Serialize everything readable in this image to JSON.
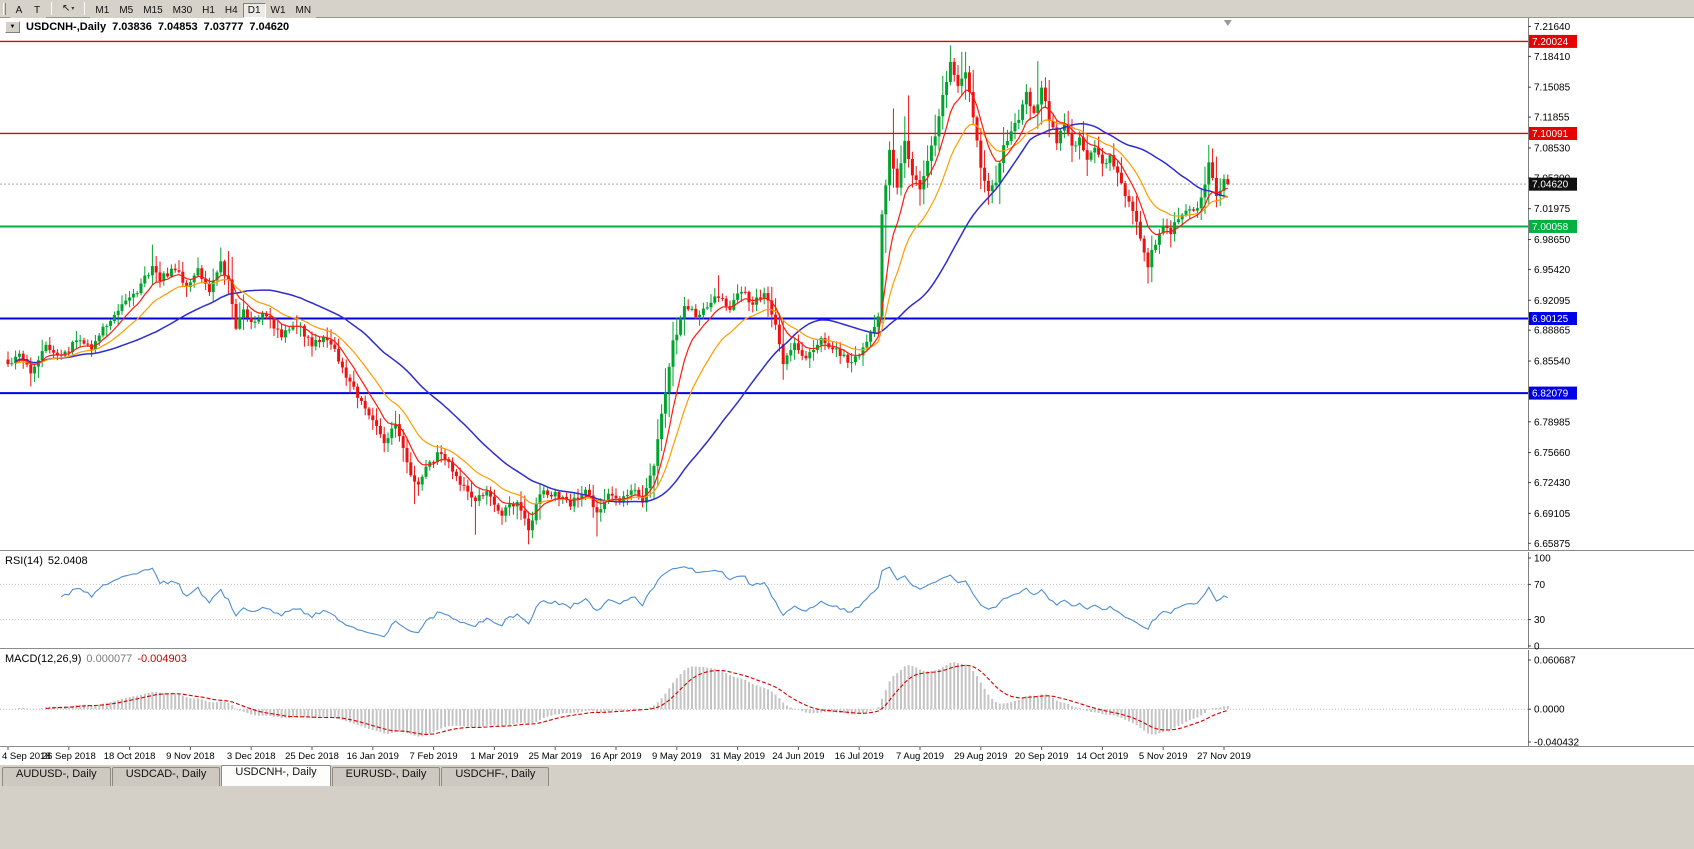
{
  "icons": {
    "dropdown": "▼",
    "cursor": "↖",
    "chevron": "▾"
  },
  "toolbar": {
    "buttons": [
      "A",
      "T"
    ],
    "timeframes": [
      "M1",
      "M5",
      "M15",
      "M30",
      "H1",
      "H4",
      "D1",
      "W1",
      "MN"
    ],
    "active_timeframe": "D1"
  },
  "chart": {
    "title": {
      "symbol": "USDCNH-,Daily",
      "open": "7.03836",
      "high": "7.04853",
      "low": "7.03777",
      "close": "7.04620"
    }
  },
  "chart_data": {
    "type": "candlestick",
    "symbol": "USDCNH-",
    "period": "Daily",
    "bars": 322,
    "candle_up_color": "#00a32e",
    "candle_down_color": "#ef1010",
    "y_axis": {
      "top_price": 7.2255,
      "bottom_price": 6.6515,
      "ticks": [
        "7.21640",
        "7.18410",
        "7.15085",
        "7.11855",
        "7.08530",
        "7.05300",
        "7.01975",
        "6.98650",
        "6.95420",
        "6.92095",
        "6.88865",
        "6.85540",
        "6.82215",
        "6.78985",
        "6.75660",
        "6.72430",
        "6.69105",
        "6.65875"
      ]
    },
    "x_axis": {
      "ticks": [
        {
          "bar": 0,
          "label": "4 Sep 2018"
        },
        {
          "bar": 16,
          "label": "26 Sep 2018"
        },
        {
          "bar": 32,
          "label": "18 Oct 2018"
        },
        {
          "bar": 48,
          "label": "9 Nov 2018"
        },
        {
          "bar": 64,
          "label": "3 Dec 2018"
        },
        {
          "bar": 80,
          "label": "25 Dec 2018"
        },
        {
          "bar": 96,
          "label": "16 Jan 2019"
        },
        {
          "bar": 112,
          "label": "7 Feb 2019"
        },
        {
          "bar": 128,
          "label": "1 Mar 2019"
        },
        {
          "bar": 144,
          "label": "25 Mar 2019"
        },
        {
          "bar": 160,
          "label": "16 Apr 2019"
        },
        {
          "bar": 176,
          "label": "9 May 2019"
        },
        {
          "bar": 192,
          "label": "31 May 2019"
        },
        {
          "bar": 208,
          "label": "24 Jun 2019"
        },
        {
          "bar": 224,
          "label": "16 Jul 2019"
        },
        {
          "bar": 240,
          "label": "7 Aug 2019"
        },
        {
          "bar": 256,
          "label": "29 Aug 2019"
        },
        {
          "bar": 272,
          "label": "20 Sep 2019"
        },
        {
          "bar": 288,
          "label": "14 Oct 2019"
        },
        {
          "bar": 304,
          "label": "5 Nov 2019"
        },
        {
          "bar": 320,
          "label": "27 Nov 2019"
        }
      ]
    },
    "horizontal_lines": [
      {
        "price": 7.20024,
        "label": "7.20024",
        "color": "#e60000",
        "width": 1.4
      },
      {
        "price": 7.10091,
        "label": "7.10091",
        "color": "#e60000",
        "width": 1.4
      },
      {
        "price": 7.00058,
        "label": "7.00058",
        "color": "#00b140",
        "width": 2
      },
      {
        "price": 6.90125,
        "label": "6.90125",
        "color": "#0000e6",
        "width": 2
      },
      {
        "price": 6.82079,
        "label": "6.82079",
        "color": "#0000e6",
        "width": 2
      }
    ],
    "current_price": {
      "price": 7.0462,
      "label": "7.04620",
      "box_color": "#101010",
      "line_color": "#a8a8a8"
    },
    "moving_averages": [
      {
        "kind": "ema",
        "period": 8,
        "color": "#ff1a0e",
        "width": 1.2
      },
      {
        "kind": "ema",
        "period": 18,
        "color": "#ff9c00",
        "width": 1.2
      },
      {
        "kind": "sma",
        "period": 40,
        "color": "#2d2dcc",
        "width": 1.5
      }
    ],
    "close_waypoints": [
      [
        0,
        6.852
      ],
      [
        3,
        6.862
      ],
      [
        6,
        6.843
      ],
      [
        10,
        6.871
      ],
      [
        14,
        6.858
      ],
      [
        18,
        6.878
      ],
      [
        22,
        6.871
      ],
      [
        26,
        6.896
      ],
      [
        30,
        6.916
      ],
      [
        34,
        6.931
      ],
      [
        38,
        6.958
      ],
      [
        40,
        6.944
      ],
      [
        44,
        6.956
      ],
      [
        47,
        6.937
      ],
      [
        50,
        6.954
      ],
      [
        53,
        6.93
      ],
      [
        56,
        6.96
      ],
      [
        58,
        6.941
      ],
      [
        60,
        6.889
      ],
      [
        62,
        6.911
      ],
      [
        64,
        6.895
      ],
      [
        68,
        6.906
      ],
      [
        72,
        6.882
      ],
      [
        76,
        6.896
      ],
      [
        80,
        6.873
      ],
      [
        84,
        6.881
      ],
      [
        88,
        6.849
      ],
      [
        92,
        6.816
      ],
      [
        96,
        6.791
      ],
      [
        99,
        6.766
      ],
      [
        102,
        6.788
      ],
      [
        105,
        6.743
      ],
      [
        108,
        6.721
      ],
      [
        111,
        6.746
      ],
      [
        114,
        6.757
      ],
      [
        118,
        6.731
      ],
      [
        122,
        6.706
      ],
      [
        126,
        6.713
      ],
      [
        130,
        6.691
      ],
      [
        134,
        6.706
      ],
      [
        137,
        6.673
      ],
      [
        140,
        6.713
      ],
      [
        144,
        6.712
      ],
      [
        148,
        6.701
      ],
      [
        152,
        6.718
      ],
      [
        155,
        6.689
      ],
      [
        158,
        6.712
      ],
      [
        161,
        6.703
      ],
      [
        164,
        6.718
      ],
      [
        167,
        6.706
      ],
      [
        170,
        6.742
      ],
      [
        172,
        6.795
      ],
      [
        175,
        6.875
      ],
      [
        178,
        6.912
      ],
      [
        182,
        6.904
      ],
      [
        186,
        6.927
      ],
      [
        190,
        6.914
      ],
      [
        193,
        6.931
      ],
      [
        196,
        6.917
      ],
      [
        199,
        6.929
      ],
      [
        202,
        6.894
      ],
      [
        204,
        6.853
      ],
      [
        207,
        6.871
      ],
      [
        210,
        6.859
      ],
      [
        214,
        6.879
      ],
      [
        218,
        6.867
      ],
      [
        222,
        6.853
      ],
      [
        226,
        6.876
      ],
      [
        229,
        6.901
      ],
      [
        230,
        7.015
      ],
      [
        232,
        7.08
      ],
      [
        234,
        7.046
      ],
      [
        236,
        7.09
      ],
      [
        238,
        7.057
      ],
      [
        240,
        7.043
      ],
      [
        242,
        7.074
      ],
      [
        244,
        7.097
      ],
      [
        246,
        7.14
      ],
      [
        248,
        7.176
      ],
      [
        250,
        7.151
      ],
      [
        252,
        7.17
      ],
      [
        254,
        7.117
      ],
      [
        256,
        7.063
      ],
      [
        258,
        7.036
      ],
      [
        260,
        7.051
      ],
      [
        262,
        7.087
      ],
      [
        264,
        7.104
      ],
      [
        266,
        7.117
      ],
      [
        268,
        7.143
      ],
      [
        270,
        7.121
      ],
      [
        272,
        7.15
      ],
      [
        274,
        7.117
      ],
      [
        276,
        7.094
      ],
      [
        278,
        7.11
      ],
      [
        280,
        7.087
      ],
      [
        282,
        7.094
      ],
      [
        284,
        7.071
      ],
      [
        286,
        7.087
      ],
      [
        288,
        7.067
      ],
      [
        290,
        7.077
      ],
      [
        292,
        7.061
      ],
      [
        294,
        7.037
      ],
      [
        296,
        7.02
      ],
      [
        298,
        6.986
      ],
      [
        300,
        6.96
      ],
      [
        302,
        6.984
      ],
      [
        304,
        7.001
      ],
      [
        306,
        6.991
      ],
      [
        308,
        7.012
      ],
      [
        310,
        7.021
      ],
      [
        312,
        7.014
      ],
      [
        314,
        7.03
      ],
      [
        316,
        7.068
      ],
      [
        317,
        7.052
      ],
      [
        318,
        7.034
      ],
      [
        319,
        7.041
      ],
      [
        320,
        7.052
      ],
      [
        321,
        7.0462
      ]
    ],
    "extra_wicks": [
      {
        "bar": 6,
        "low": 6.828
      },
      {
        "bar": 38,
        "high": 6.981
      },
      {
        "bar": 56,
        "high": 6.978
      },
      {
        "bar": 107,
        "low": 6.701
      },
      {
        "bar": 123,
        "low": 6.668
      },
      {
        "bar": 137,
        "low": 6.661
      },
      {
        "bar": 155,
        "low": 6.666
      },
      {
        "bar": 187,
        "high": 6.948
      },
      {
        "bar": 204,
        "low": 6.838
      },
      {
        "bar": 231,
        "low": 6.972
      },
      {
        "bar": 233,
        "high": 7.128
      },
      {
        "bar": 237,
        "high": 7.142
      },
      {
        "bar": 248,
        "high": 7.196
      },
      {
        "bar": 251,
        "high": 7.189
      },
      {
        "bar": 258,
        "low": 7.024
      },
      {
        "bar": 271,
        "high": 7.179
      },
      {
        "bar": 300,
        "low": 6.939
      },
      {
        "bar": 316,
        "high": 7.085
      }
    ]
  },
  "rsi_panel": {
    "title": "RSI(14)",
    "value": "52.0408",
    "period": 14,
    "line_color": "#4d8fd0",
    "levels": [
      70,
      30
    ],
    "ticks": [
      {
        "value": 100,
        "label": "100"
      },
      {
        "value": 70,
        "label": "70"
      },
      {
        "value": 30,
        "label": "30"
      },
      {
        "value": 0,
        "label": "0"
      }
    ]
  },
  "macd_panel": {
    "title": "MACD(12,26,9)",
    "value_main": "0.000077",
    "value_signal": "-0.004903",
    "fast": 12,
    "slow": 26,
    "signal_period": 9,
    "hist_color": "#c4c4c4",
    "signal_color": "#d60000",
    "ticks": [
      {
        "value": 0.060687,
        "label": "0.060687"
      },
      {
        "value": 0,
        "label": "0.0000"
      },
      {
        "value": -0.040432,
        "label": "-0.040432"
      }
    ]
  },
  "tabs": [
    {
      "label": "AUDUSD-, Daily",
      "active": false
    },
    {
      "label": "USDCAD-, Daily",
      "active": false
    },
    {
      "label": "USDCNH-, Daily",
      "active": true
    },
    {
      "label": "EURUSD-, Daily",
      "active": false
    },
    {
      "label": "USDCHF-, Daily",
      "active": false
    }
  ]
}
